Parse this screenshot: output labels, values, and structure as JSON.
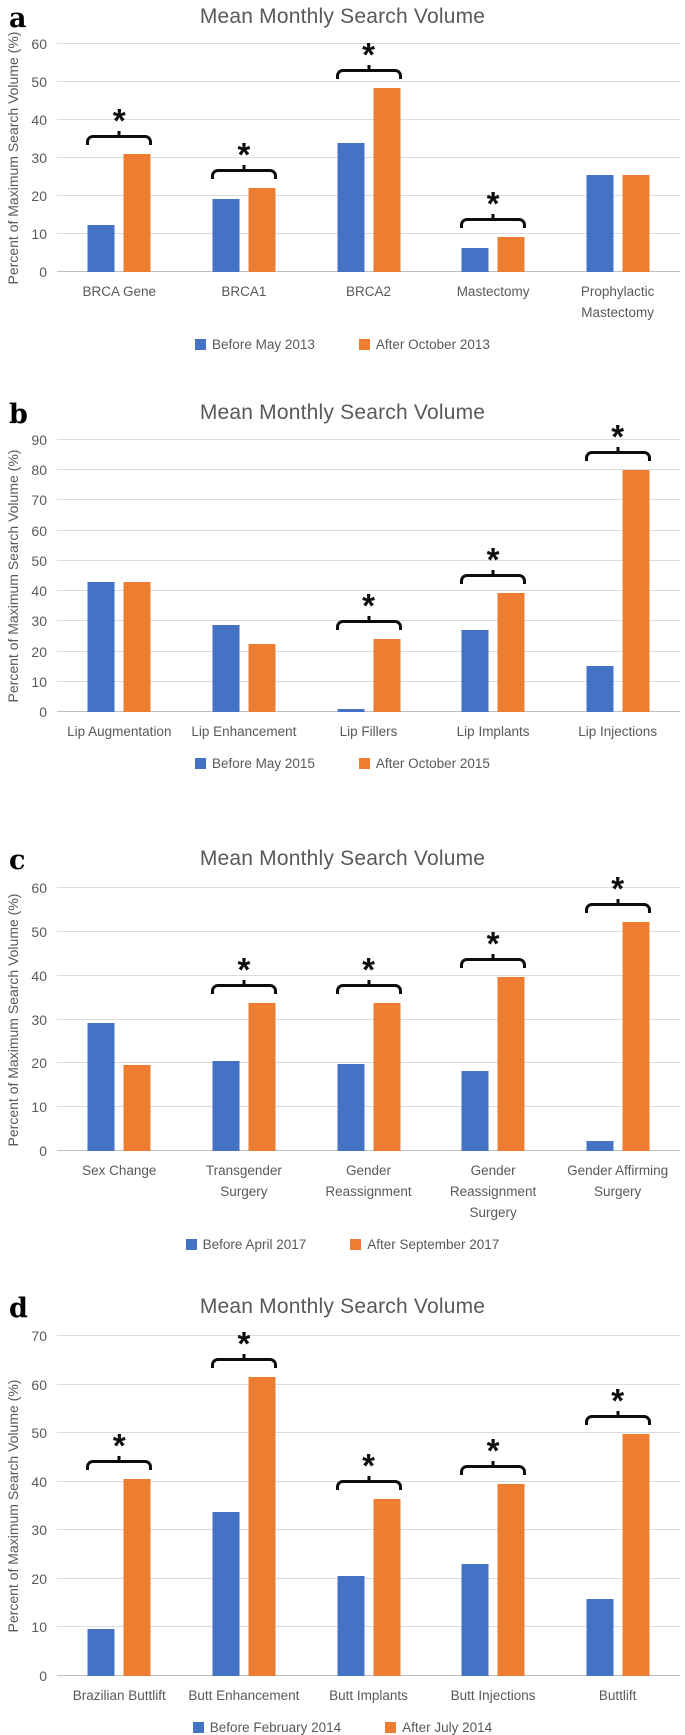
{
  "figure": {
    "panels": 4,
    "shared_title": "Mean Monthly Search Volume",
    "shared_ylabel": "Percent of Maximum Search Volume (%)",
    "colors": {
      "before_series": "#4472C4",
      "after_series": "#ED7D31",
      "text": "#595959",
      "gridline": "#DCDCDC",
      "significance_marks": "#0D0D0D"
    },
    "significance_symbol": "*"
  },
  "chart_data": [
    {
      "type": "bar",
      "panel_label": "a",
      "title": "Mean Monthly Search Volume",
      "ylabel": "Percent of Maximum Search Volume (%)",
      "xlabel": "",
      "ylim": [
        0,
        60
      ],
      "yticks": [
        0,
        10,
        20,
        30,
        40,
        50,
        60
      ],
      "grid": "horizontal",
      "legend_position": "bottom",
      "categories": [
        "BRCA Gene",
        "BRCA1",
        "BRCA2",
        "Mastectomy",
        "Prophylactic\nMastectomy"
      ],
      "series": [
        {
          "name": "Before May 2013",
          "color": "#4472C4",
          "values": [
            12.5,
            19.3,
            34,
            6.3,
            25.5
          ]
        },
        {
          "name": "After October 2013",
          "color": "#ED7D31",
          "values": [
            31,
            22,
            48.5,
            9.2,
            25.5
          ]
        }
      ],
      "significant": [
        true,
        true,
        true,
        true,
        false
      ]
    },
    {
      "type": "bar",
      "panel_label": "b",
      "title": "Mean Monthly Search Volume",
      "ylabel": "Percent of Maximum Search Volume (%)",
      "xlabel": "",
      "ylim": [
        0,
        90
      ],
      "yticks": [
        0,
        10,
        20,
        30,
        40,
        50,
        60,
        70,
        80,
        90
      ],
      "grid": "horizontal",
      "legend_position": "bottom",
      "categories": [
        "Lip Augmentation",
        "Lip Enhancement",
        "Lip Fillers",
        "Lip Implants",
        "Lip Injections"
      ],
      "series": [
        {
          "name": "Before May 2015",
          "color": "#4472C4",
          "values": [
            43,
            28.8,
            1,
            27.3,
            15.2
          ]
        },
        {
          "name": "After October 2015",
          "color": "#ED7D31",
          "values": [
            43,
            22.5,
            24,
            39.5,
            80
          ]
        }
      ],
      "significant": [
        false,
        false,
        true,
        true,
        true
      ]
    },
    {
      "type": "bar",
      "panel_label": "c",
      "title": "Mean Monthly Search Volume",
      "ylabel": "Percent of Maximum Search Volume (%)",
      "xlabel": "",
      "ylim": [
        0,
        60
      ],
      "yticks": [
        0,
        10,
        20,
        30,
        40,
        50,
        60
      ],
      "grid": "horizontal",
      "legend_position": "bottom",
      "categories": [
        "Sex Change",
        "Transgender Surgery",
        "Gender\nReassignment",
        "Gender\nReassignment\nSurgery",
        "Gender Affirming\nSurgery"
      ],
      "series": [
        {
          "name": "Before April 2017",
          "color": "#4472C4",
          "values": [
            29.2,
            20.6,
            19.8,
            18.2,
            2.3
          ]
        },
        {
          "name": "After September 2017",
          "color": "#ED7D31",
          "values": [
            19.6,
            33.8,
            33.8,
            39.6,
            52.3
          ]
        }
      ],
      "significant": [
        false,
        true,
        true,
        true,
        true
      ]
    },
    {
      "type": "bar",
      "panel_label": "d",
      "title": "Mean Monthly Search Volume",
      "ylabel": "Percent of Maximum Search Volume (%)",
      "xlabel": "",
      "ylim": [
        0,
        70
      ],
      "yticks": [
        0,
        10,
        20,
        30,
        40,
        50,
        60,
        70
      ],
      "grid": "horizontal",
      "legend_position": "bottom",
      "categories": [
        "Brazilian Buttlift",
        "Butt Enhancement",
        "Butt Implants",
        "Butt Injections",
        "Buttlift"
      ],
      "series": [
        {
          "name": "Before February 2014",
          "color": "#4472C4",
          "values": [
            9.6,
            33.8,
            20.5,
            23,
            15.8
          ]
        },
        {
          "name": "After July 2014",
          "color": "#ED7D31",
          "values": [
            40.5,
            61.6,
            36.5,
            39.5,
            49.8
          ]
        }
      ],
      "significant": [
        true,
        true,
        true,
        true,
        true
      ]
    }
  ]
}
